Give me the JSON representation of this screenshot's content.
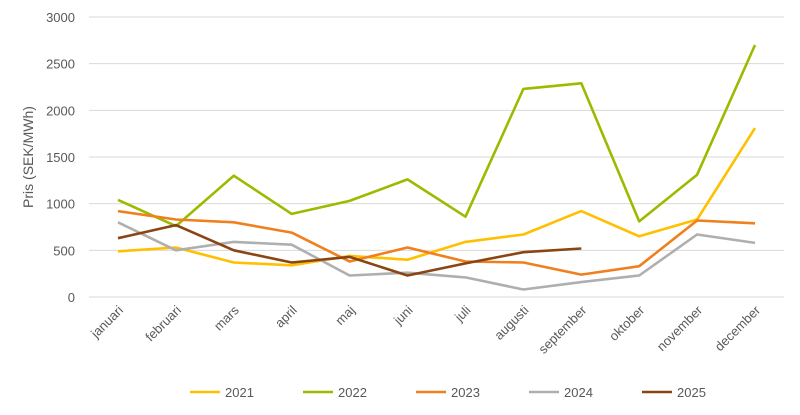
{
  "chart_data": {
    "type": "line",
    "title": "",
    "xlabel": "",
    "ylabel": "Pris (SEK/MWh)",
    "ylim": [
      0,
      3000
    ],
    "yticks": [
      0,
      500,
      1000,
      1500,
      2000,
      2500,
      3000
    ],
    "grid": true,
    "legend_position": "bottom",
    "categories": [
      "januari",
      "februari",
      "mars",
      "april",
      "maj",
      "juni",
      "juli",
      "augusti",
      "september",
      "oktober",
      "november",
      "december"
    ],
    "series": [
      {
        "name": "2021",
        "color": "#FFC000",
        "values": [
          490,
          530,
          370,
          340,
          440,
          400,
          590,
          670,
          920,
          650,
          830,
          1810
        ]
      },
      {
        "name": "2022",
        "color": "#9BBB00",
        "values": [
          1040,
          760,
          1300,
          890,
          1030,
          1260,
          860,
          2230,
          2290,
          810,
          1310,
          2700
        ]
      },
      {
        "name": "2023",
        "color": "#F07F1E",
        "values": [
          920,
          830,
          800,
          690,
          380,
          530,
          380,
          370,
          240,
          330,
          820,
          790
        ]
      },
      {
        "name": "2024",
        "color": "#AFAFAF",
        "values": [
          800,
          500,
          590,
          560,
          230,
          260,
          210,
          80,
          160,
          230,
          670,
          580
        ]
      },
      {
        "name": "2025",
        "color": "#8B4513",
        "values": [
          630,
          770,
          500,
          370,
          430,
          230,
          360,
          480,
          520,
          null,
          null,
          null
        ]
      }
    ]
  }
}
